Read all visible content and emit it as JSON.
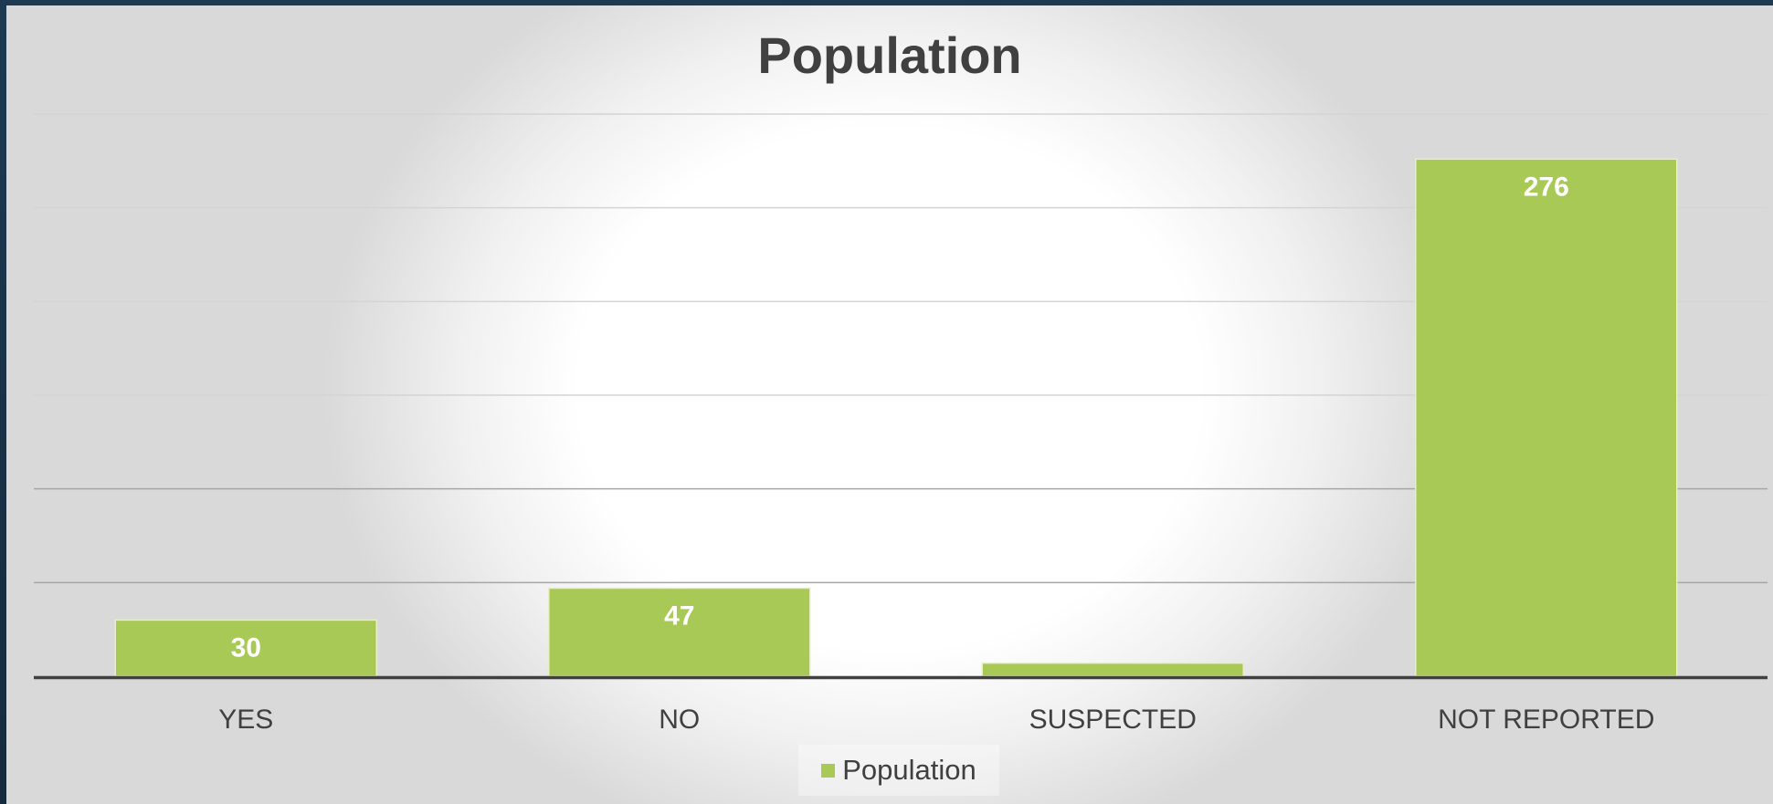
{
  "chart_data": {
    "type": "bar",
    "title": "Population",
    "categories": [
      "YES",
      "NO",
      "SUSPECTED",
      "NOT REPORTED"
    ],
    "series": [
      {
        "name": "Population",
        "values": [
          30,
          47,
          7,
          276
        ],
        "data_labels": [
          "30",
          "47",
          "",
          "276"
        ],
        "color": "#a9c957"
      }
    ],
    "ylim": [
      0,
      300
    ],
    "gridlines": true,
    "legend_position": "bottom",
    "label_color": "#ffffff",
    "axis_color": "#404040"
  }
}
